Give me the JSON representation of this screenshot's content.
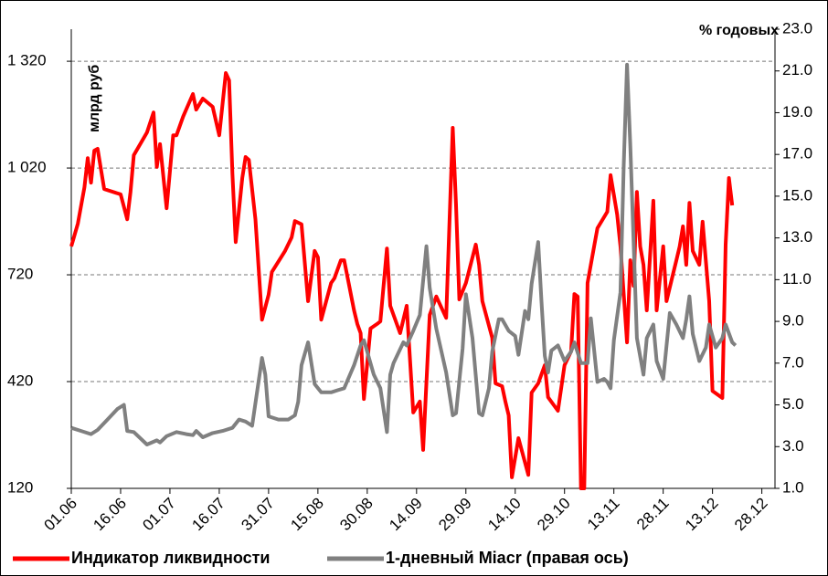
{
  "chart_data": {
    "type": "line",
    "y_label": "млрд руб",
    "y2_label": "% годовых",
    "xlim": [
      0,
      214
    ],
    "xticks": [
      {
        "value": 0,
        "label": "01.06"
      },
      {
        "value": 15,
        "label": "16.06"
      },
      {
        "value": 30,
        "label": "01.07"
      },
      {
        "value": 45,
        "label": "16.07"
      },
      {
        "value": 60,
        "label": "31.07"
      },
      {
        "value": 75,
        "label": "15.08"
      },
      {
        "value": 90,
        "label": "30.08"
      },
      {
        "value": 105,
        "label": "14.09"
      },
      {
        "value": 120,
        "label": "29.09"
      },
      {
        "value": 135,
        "label": "14.10"
      },
      {
        "value": 150,
        "label": "29.10"
      },
      {
        "value": 165,
        "label": "13.11"
      },
      {
        "value": 180,
        "label": "28.11"
      },
      {
        "value": 195,
        "label": "13.12"
      },
      {
        "value": 210,
        "label": "28.12"
      }
    ],
    "ylim": [
      120,
      1410
    ],
    "yticks": [
      120,
      420,
      720,
      {
        "value": 1020,
        "label": "1 020"
      },
      {
        "value": 1320,
        "label": "1 320"
      }
    ],
    "y2lim": [
      1,
      23
    ],
    "y2ticks": [
      {
        "value": 1,
        "label": "1.0"
      },
      {
        "value": 3,
        "label": "3.0"
      },
      {
        "value": 5,
        "label": "5.0"
      },
      {
        "value": 7,
        "label": "7.0"
      },
      {
        "value": 9,
        "label": "9.0"
      },
      {
        "value": 11,
        "label": "11.0"
      },
      {
        "value": 13,
        "label": "13.0"
      },
      {
        "value": 15,
        "label": "15.0"
      },
      {
        "value": 17,
        "label": "17.0"
      },
      {
        "value": 19,
        "label": "19.0"
      },
      {
        "value": 21,
        "label": "21.0"
      },
      {
        "value": 23,
        "label": "23.0"
      }
    ],
    "grid": true,
    "series": [
      {
        "name": "Индикатор ликвидности",
        "color": "#ff0000",
        "x": [
          0,
          2,
          4,
          5,
          6,
          7,
          8,
          10,
          15,
          17,
          18,
          19,
          23,
          25,
          26,
          27,
          29,
          31,
          32,
          34,
          37,
          38,
          40,
          43,
          45,
          47,
          48,
          49,
          50,
          52,
          53,
          54,
          56,
          58,
          60,
          61,
          65,
          67,
          68,
          70,
          72,
          74,
          75,
          76,
          79,
          80,
          82,
          83,
          86,
          87,
          88,
          89,
          91,
          93,
          94,
          96,
          97,
          100,
          102,
          104,
          106,
          107,
          109,
          111,
          114,
          116,
          117,
          118,
          120,
          123,
          124,
          125,
          128,
          129,
          131,
          132,
          133,
          134,
          136,
          139,
          140,
          142,
          144,
          145,
          148,
          150,
          152,
          153,
          154,
          155,
          156,
          157,
          159,
          160,
          163,
          164,
          166,
          167,
          169,
          170,
          171,
          172,
          173,
          174,
          175,
          177,
          178,
          180,
          181,
          183,
          184,
          185,
          186,
          187,
          188,
          189,
          191,
          192,
          194,
          195,
          198,
          199,
          200,
          201
        ],
        "values": [
          800,
          864,
          966,
          1048,
          979,
          1069,
          1074,
          961,
          946,
          876,
          953,
          1056,
          1120,
          1176,
          1023,
          1087,
          907,
          1112,
          1112,
          1164,
          1228,
          1184,
          1215,
          1192,
          1112,
          1287,
          1266,
          1005,
          812,
          992,
          1051,
          1043,
          876,
          594,
          664,
          728,
          787,
          825,
          871,
          862,
          646,
          787,
          769,
          594,
          697,
          710,
          761,
          761,
          620,
          582,
          556,
          371,
          569,
          582,
          589,
          794,
          633,
          556,
          633,
          333,
          364,
          228,
          607,
          659,
          599,
          1133,
          915,
          651,
          697,
          805,
          748,
          646,
          543,
          415,
          407,
          364,
          325,
          151,
          261,
          158,
          389,
          415,
          466,
          376,
          338,
          466,
          505,
          666,
          659,
          120,
          120,
          697,
          800,
          851,
          897,
          1000,
          889,
          800,
          530,
          761,
          689,
          953,
          800,
          748,
          620,
          928,
          620,
          800,
          646,
          723,
          761,
          800,
          856,
          748,
          922,
          787,
          748,
          869,
          646,
          394,
          374,
          805,
          992,
          915
        ]
      },
      {
        "name": "1-дневный Miacr (правая ось)",
        "color": "#808080",
        "axis": "y2",
        "x": [
          0,
          3,
          6,
          8,
          11,
          14,
          16,
          17,
          19,
          23,
          26,
          27,
          29,
          32,
          35,
          37,
          38,
          40,
          43,
          46,
          49,
          51,
          53,
          55,
          58,
          59,
          60,
          63,
          66,
          68,
          69,
          70,
          72,
          74,
          76,
          79,
          81,
          83,
          86,
          88,
          89,
          92,
          94,
          96,
          97,
          98,
          101,
          102,
          104,
          106,
          108,
          109,
          111,
          114,
          116,
          117,
          119,
          120,
          122,
          124,
          125,
          127,
          128,
          130,
          131,
          133,
          135,
          136,
          138,
          139,
          140,
          142,
          143,
          144,
          145,
          146,
          148,
          150,
          152,
          153,
          155,
          157,
          158,
          160,
          162,
          163,
          164,
          165,
          167,
          168,
          169,
          170,
          172,
          174,
          175,
          177,
          178,
          180,
          182,
          184,
          186,
          187,
          188,
          189,
          191,
          193,
          194,
          196,
          198,
          199,
          201,
          202
        ],
        "values": [
          3.9,
          3.75,
          3.6,
          3.8,
          4.3,
          4.8,
          5.0,
          3.75,
          3.7,
          3.1,
          3.3,
          3.2,
          3.5,
          3.7,
          3.6,
          3.55,
          3.75,
          3.45,
          3.65,
          3.75,
          3.9,
          4.3,
          4.2,
          4.0,
          7.25,
          6.45,
          4.45,
          4.3,
          4.3,
          4.5,
          5.15,
          6.9,
          8.0,
          6.0,
          5.6,
          5.6,
          5.7,
          5.8,
          6.9,
          7.85,
          8.1,
          6.45,
          5.8,
          3.7,
          6.45,
          7.0,
          8.0,
          7.85,
          8.55,
          9.3,
          12.6,
          10.6,
          8.65,
          6.55,
          4.5,
          4.6,
          7.7,
          10.3,
          8.2,
          4.6,
          4.5,
          5.8,
          7.55,
          9.1,
          9.1,
          8.55,
          8.3,
          7.4,
          9.5,
          9.1,
          10.8,
          12.8,
          9.95,
          7.35,
          6.55,
          7.6,
          7.85,
          7.1,
          7.55,
          8.0,
          7.0,
          7.0,
          9.15,
          6.1,
          6.25,
          6.1,
          5.8,
          8.1,
          10.4,
          16.5,
          21.3,
          17.4,
          8.2,
          6.45,
          8.2,
          8.85,
          7.1,
          6.25,
          9.4,
          8.85,
          8.2,
          9.1,
          10.2,
          8.4,
          7.1,
          7.75,
          8.85,
          7.75,
          8.2,
          8.85,
          8.0,
          7.85
        ]
      }
    ]
  }
}
